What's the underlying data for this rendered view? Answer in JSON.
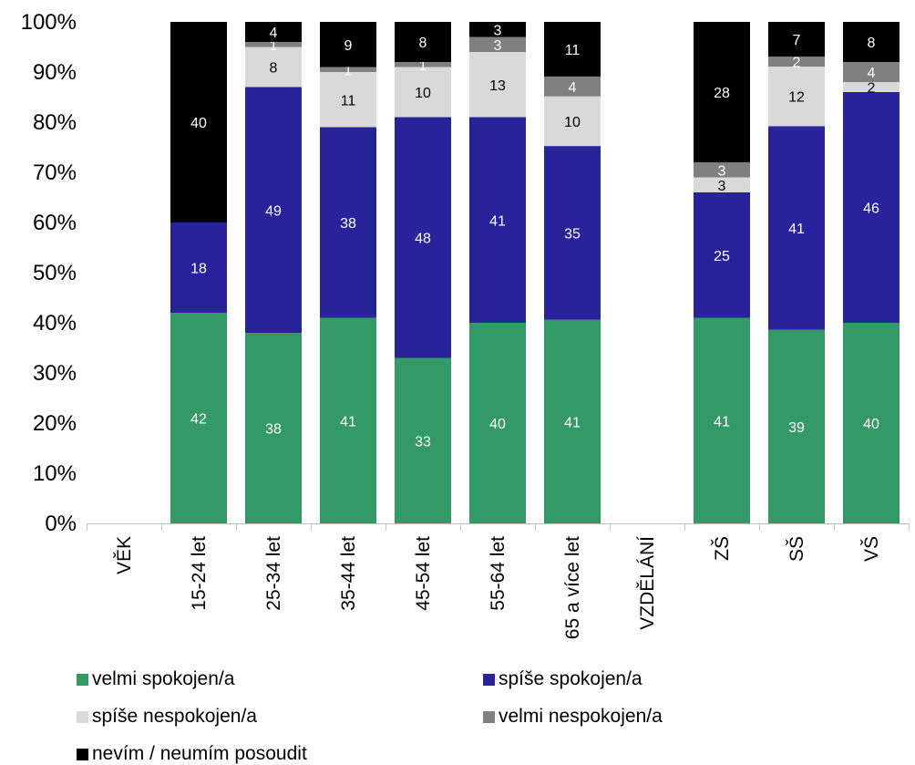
{
  "chart_data": {
    "type": "bar",
    "stacked": true,
    "percent_stacked": true,
    "categories": [
      "VĚK",
      "15-24 let",
      "25-34 let",
      "35-44 let",
      "45-54 let",
      "55-64 let",
      "65 a více let",
      "VZDĚLÁNÍ",
      "ZŠ",
      "SŠ",
      "VŠ"
    ],
    "series": [
      {
        "name": "velmi spokojen/a",
        "color": "#339966",
        "label_color": "#ffffff",
        "values": [
          null,
          42,
          38,
          41,
          33,
          40,
          41,
          null,
          41,
          39,
          40
        ]
      },
      {
        "name": "spíše spokojen/a",
        "color": "#29239b",
        "label_color": "#ffffff",
        "values": [
          null,
          18,
          49,
          38,
          48,
          41,
          35,
          null,
          25,
          41,
          46
        ]
      },
      {
        "name": "spíše nespokojen/a",
        "color": "#d9d9d9",
        "label_color": "#000000",
        "values": [
          null,
          0,
          8,
          11,
          10,
          13,
          10,
          null,
          3,
          12,
          2
        ]
      },
      {
        "name": "velmi nespokojen/a",
        "color": "#808080",
        "label_color": "#ffffff",
        "values": [
          null,
          0,
          1,
          1,
          1,
          3,
          4,
          null,
          3,
          2,
          4
        ]
      },
      {
        "name": "nevím / neumím posoudit",
        "color": "#000000",
        "label_color": "#ffffff",
        "values": [
          null,
          40,
          4,
          9,
          8,
          3,
          11,
          null,
          28,
          7,
          8
        ]
      }
    ],
    "ylim": [
      0,
      100
    ],
    "yticks": [
      "0%",
      "10%",
      "20%",
      "30%",
      "40%",
      "50%",
      "60%",
      "70%",
      "80%",
      "90%",
      "100%"
    ],
    "grid": false,
    "legend_position": "bottom"
  }
}
